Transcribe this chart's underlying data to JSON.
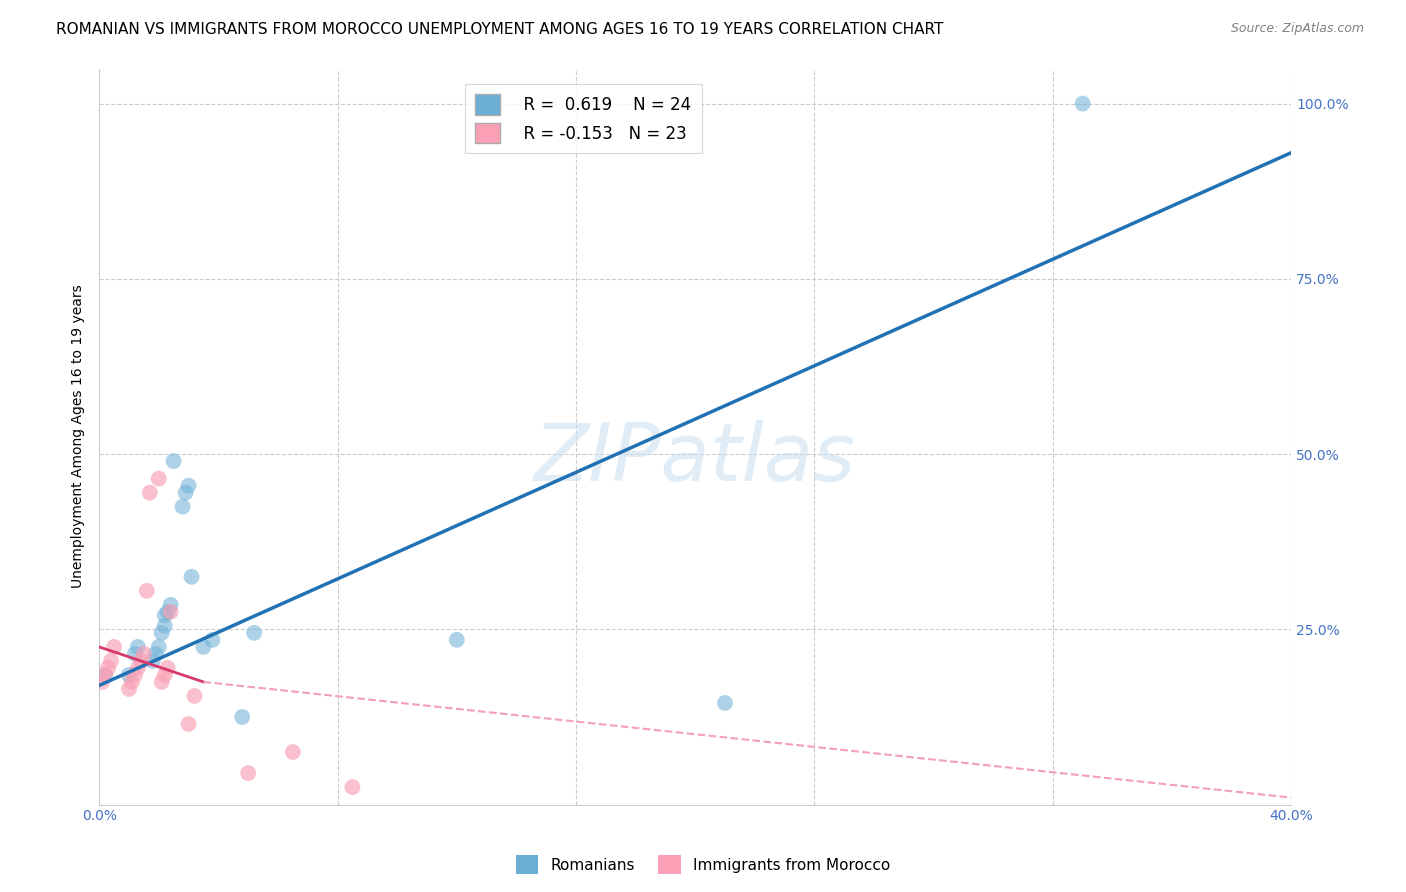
{
  "title": "ROMANIAN VS IMMIGRANTS FROM MOROCCO UNEMPLOYMENT AMONG AGES 16 TO 19 YEARS CORRELATION CHART",
  "source": "Source: ZipAtlas.com",
  "ylabel": "Unemployment Among Ages 16 to 19 years",
  "xlim": [
    0.0,
    0.4
  ],
  "ylim": [
    0.0,
    1.05
  ],
  "x_ticks": [
    0.0,
    0.08,
    0.16,
    0.24,
    0.32,
    0.4
  ],
  "y_ticks_right": [
    0.0,
    0.25,
    0.5,
    0.75,
    1.0
  ],
  "watermark": "ZIPatlas",
  "blue_color": "#6baed6",
  "pink_color": "#fa9fb5",
  "blue_line_color": "#2171b5",
  "pink_line_color": "#d63a6b",
  "pink_dashed_color": "#f4a0b5",
  "legend_R_blue": "0.619",
  "legend_N_blue": "24",
  "legend_R_pink": "-0.153",
  "legend_N_pink": "23",
  "romanian_x": [
    0.002,
    0.01,
    0.012,
    0.013,
    0.018,
    0.019,
    0.02,
    0.021,
    0.022,
    0.022,
    0.023,
    0.024,
    0.025,
    0.028,
    0.029,
    0.03,
    0.031,
    0.035,
    0.038,
    0.048,
    0.052,
    0.12,
    0.21,
    0.33
  ],
  "romanian_y": [
    0.185,
    0.185,
    0.215,
    0.225,
    0.205,
    0.215,
    0.225,
    0.245,
    0.255,
    0.27,
    0.275,
    0.285,
    0.49,
    0.425,
    0.445,
    0.455,
    0.325,
    0.225,
    0.235,
    0.125,
    0.245,
    0.235,
    0.145,
    1.0
  ],
  "moroccan_x": [
    0.001,
    0.002,
    0.003,
    0.004,
    0.005,
    0.01,
    0.011,
    0.012,
    0.013,
    0.014,
    0.015,
    0.016,
    0.017,
    0.02,
    0.021,
    0.022,
    0.023,
    0.024,
    0.03,
    0.032,
    0.05,
    0.065,
    0.085
  ],
  "moroccan_y": [
    0.175,
    0.185,
    0.195,
    0.205,
    0.225,
    0.165,
    0.175,
    0.185,
    0.195,
    0.205,
    0.215,
    0.305,
    0.445,
    0.465,
    0.175,
    0.185,
    0.195,
    0.275,
    0.115,
    0.155,
    0.045,
    0.075,
    0.025
  ],
  "blue_line_x": [
    0.0,
    0.4
  ],
  "blue_line_y": [
    0.17,
    0.93
  ],
  "pink_solid_line_x": [
    0.0,
    0.035
  ],
  "pink_solid_line_y": [
    0.225,
    0.175
  ],
  "pink_dashed_line_x": [
    0.035,
    0.4
  ],
  "pink_dashed_line_y": [
    0.175,
    0.01
  ],
  "background_color": "#ffffff",
  "grid_color": "#cccccc",
  "title_fontsize": 11,
  "axis_label_fontsize": 10,
  "tick_fontsize": 10,
  "tick_color": "#4472c4"
}
